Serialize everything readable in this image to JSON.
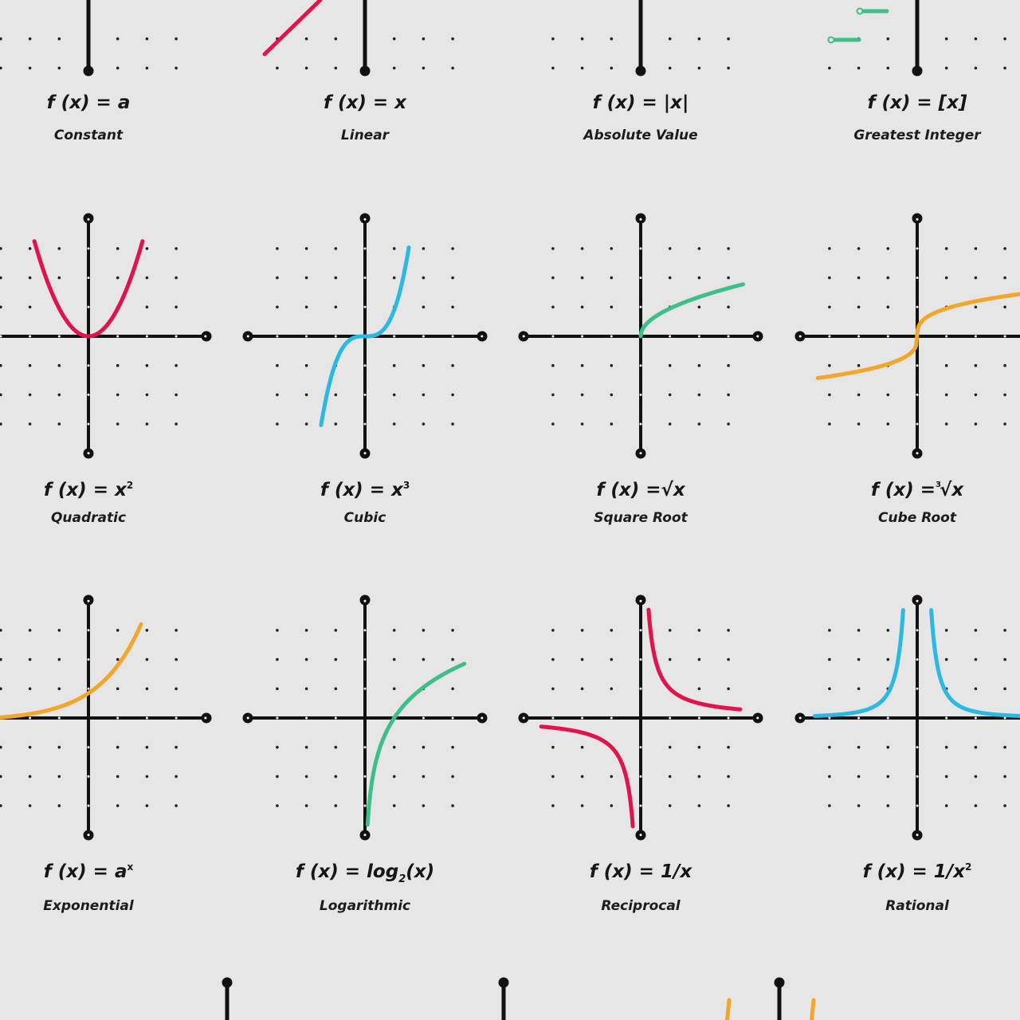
{
  "panels": [
    {
      "id": "constant",
      "formula": "f (x) = a",
      "name": "Constant"
    },
    {
      "id": "linear",
      "formula": "f (x) = x",
      "name": "Linear"
    },
    {
      "id": "absolute-value",
      "formula": "f (x) = |x|",
      "name": "Absolute Value"
    },
    {
      "id": "greatest-integer",
      "formula": "f (x) = [x]",
      "name": "Greatest Integer"
    },
    {
      "id": "quadratic",
      "formula_pre": "f (x) = x",
      "formula_sup": "2",
      "name": "Quadratic"
    },
    {
      "id": "cubic",
      "formula_pre": "f (x) = x",
      "formula_sup": "3",
      "name": "Cubic"
    },
    {
      "id": "square-root",
      "formula": "f (x) =√x",
      "name": "Square Root"
    },
    {
      "id": "cube-root",
      "formula_pre": "f (x) =",
      "formula_presup": "3",
      "formula_post": "√x",
      "name": "Cube Root"
    },
    {
      "id": "exponential",
      "formula_pre": "f (x) = a",
      "formula_sup": "x",
      "name": "Exponential"
    },
    {
      "id": "logarithmic",
      "formula_pre": "f (x) = log",
      "formula_sub": "2",
      "formula_post": "(x)",
      "name": "Logarithmic"
    },
    {
      "id": "reciprocal",
      "formula": "f (x) = 1/x",
      "name": "Reciprocal"
    },
    {
      "id": "rational",
      "formula_pre": "f (x) = 1/x",
      "formula_sup": "2",
      "name": "Rational"
    }
  ],
  "colors": {
    "background": "#e6e6e6",
    "axis": "#111111",
    "red": "#e0134a",
    "blue": "#2bb8e3",
    "green": "#3fbf88",
    "orange": "#f2a62a"
  }
}
